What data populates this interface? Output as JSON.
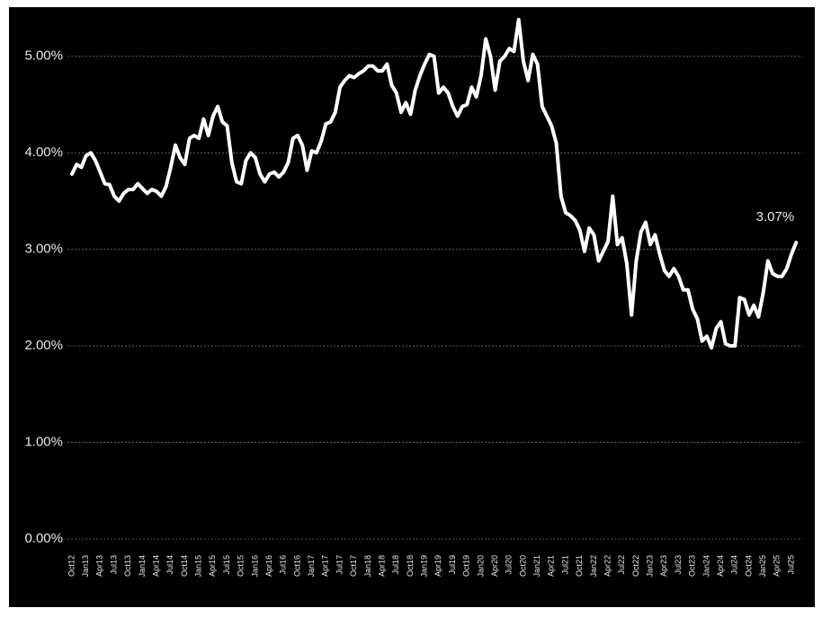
{
  "chart_data": {
    "type": "line",
    "categories": [
      "Oct12",
      null,
      null,
      "Jan13",
      null,
      null,
      "Apr13",
      null,
      null,
      "Jul13",
      null,
      null,
      "Oct13",
      null,
      null,
      "Jan14",
      null,
      null,
      "Apr14",
      null,
      null,
      "Jul14",
      null,
      null,
      "Oct14",
      null,
      null,
      "Jan15",
      null,
      null,
      "Apr15",
      null,
      null,
      "Jul15",
      null,
      null,
      "Oct15",
      null,
      null,
      "Jan16",
      null,
      null,
      "Apr16",
      null,
      null,
      "Jul16",
      null,
      null,
      "Oct16",
      null,
      null,
      "Jan17",
      null,
      null,
      "Apr17",
      null,
      null,
      "Jul17",
      null,
      null,
      "Oct17",
      null,
      null,
      "Jan18",
      null,
      null,
      "Apr18",
      null,
      null,
      "Jul18",
      null,
      null,
      "Oct18",
      null,
      null,
      "Jan19",
      null,
      null,
      "Apr19",
      null,
      null,
      "Jul19",
      null,
      null,
      "Oct19",
      null,
      null,
      "Jan20",
      null,
      null,
      "Apr20",
      null,
      null,
      "Jul20",
      null,
      null,
      "Oct20",
      null,
      null,
      "Jan21",
      null,
      null,
      "Apr21",
      null,
      null,
      "Jul21",
      null,
      null,
      "Oct21",
      null,
      null,
      "Jan22",
      null,
      null,
      "Apr22",
      null,
      null,
      "Jul22",
      null,
      null,
      "Oct22",
      null,
      null,
      "Jan23",
      null,
      null,
      "Apr23",
      null,
      null,
      "Jul23",
      null,
      null,
      "Oct23",
      null,
      null,
      "Jan24",
      null,
      null,
      "Apr24",
      null,
      null,
      "Jul24",
      null,
      null,
      "Oct24",
      null,
      null,
      "Jan25",
      null,
      null,
      "Apr25",
      null,
      null,
      "Jul25",
      null
    ],
    "values": [
      3.78,
      3.88,
      3.85,
      3.97,
      4.0,
      3.92,
      3.8,
      3.68,
      3.67,
      3.55,
      3.5,
      3.58,
      3.62,
      3.62,
      3.68,
      3.63,
      3.58,
      3.62,
      3.6,
      3.55,
      3.65,
      3.85,
      4.08,
      3.95,
      3.88,
      4.15,
      4.18,
      4.15,
      4.35,
      4.18,
      4.38,
      4.48,
      4.32,
      4.28,
      3.9,
      3.7,
      3.68,
      3.92,
      4.0,
      3.95,
      3.78,
      3.7,
      3.78,
      3.8,
      3.75,
      3.8,
      3.9,
      4.15,
      4.18,
      4.08,
      3.82,
      4.02,
      4.0,
      4.12,
      4.3,
      4.32,
      4.42,
      4.68,
      4.75,
      4.8,
      4.78,
      4.82,
      4.85,
      4.9,
      4.9,
      4.85,
      4.85,
      4.92,
      4.7,
      4.62,
      4.42,
      4.52,
      4.4,
      4.65,
      4.8,
      4.92,
      5.02,
      5.0,
      4.62,
      4.68,
      4.62,
      4.48,
      4.38,
      4.48,
      4.5,
      4.68,
      4.58,
      4.8,
      5.18,
      5.0,
      4.65,
      4.95,
      5.0,
      5.08,
      5.05,
      5.38,
      4.95,
      4.75,
      5.02,
      4.92,
      4.48,
      4.38,
      4.28,
      4.1,
      3.55,
      3.38,
      3.35,
      3.3,
      3.2,
      2.98,
      3.22,
      3.15,
      2.88,
      2.98,
      3.08,
      3.55,
      3.05,
      3.12,
      2.85,
      2.32,
      2.88,
      3.18,
      3.28,
      3.05,
      3.15,
      2.95,
      2.78,
      2.72,
      2.8,
      2.72,
      2.58,
      2.58,
      2.38,
      2.28,
      2.05,
      2.1,
      1.98,
      2.18,
      2.25,
      2.02,
      2.0,
      2.0,
      2.5,
      2.48,
      2.32,
      2.42,
      2.3,
      2.55,
      2.88,
      2.75,
      2.72,
      2.72,
      2.8,
      2.95,
      3.07
    ],
    "value_labels": [
      null,
      null,
      null,
      null,
      null,
      null,
      null,
      null,
      null,
      null,
      null,
      null,
      null,
      null,
      null,
      null,
      null,
      null,
      null,
      null,
      null,
      null,
      null,
      null,
      null,
      null,
      null,
      null,
      null,
      null,
      null,
      null,
      null,
      null,
      null,
      null,
      null,
      null,
      null,
      null,
      null,
      null,
      null,
      null,
      null,
      null,
      null,
      null,
      null,
      null,
      null,
      null,
      null,
      null,
      null,
      null,
      null,
      null,
      null,
      null,
      null,
      null,
      null,
      null,
      null,
      null,
      null,
      null,
      null,
      null,
      null,
      null,
      null,
      null,
      null,
      null,
      null,
      null,
      null,
      null,
      null,
      null,
      null,
      null,
      null,
      null,
      null,
      null,
      null,
      null,
      null,
      null,
      null,
      null,
      null,
      null,
      null,
      null,
      null,
      null,
      null,
      null,
      null,
      null,
      null,
      null,
      null,
      null,
      null,
      null,
      null,
      null,
      null,
      null,
      null,
      null,
      null,
      null,
      null,
      null,
      null,
      null,
      null,
      null,
      null,
      null,
      null,
      null,
      null,
      null,
      null,
      null,
      null,
      null,
      null,
      null,
      null,
      null,
      null,
      null,
      null,
      null,
      null,
      null,
      null,
      null,
      null,
      null,
      null,
      null,
      null,
      null,
      null,
      null,
      "3.07%"
    ],
    "color": "#ffffff",
    "ylim": [
      0,
      5.5
    ],
    "yticks": [
      {
        "value": 0,
        "label": "0.00%"
      },
      {
        "value": 1,
        "label": "1.00%"
      },
      {
        "value": 2,
        "label": "2.00%"
      },
      {
        "value": 3,
        "label": "3.00%"
      },
      {
        "value": 4,
        "label": "4.00%"
      },
      {
        "value": 5,
        "label": "5.00%"
      }
    ],
    "grid": true
  }
}
